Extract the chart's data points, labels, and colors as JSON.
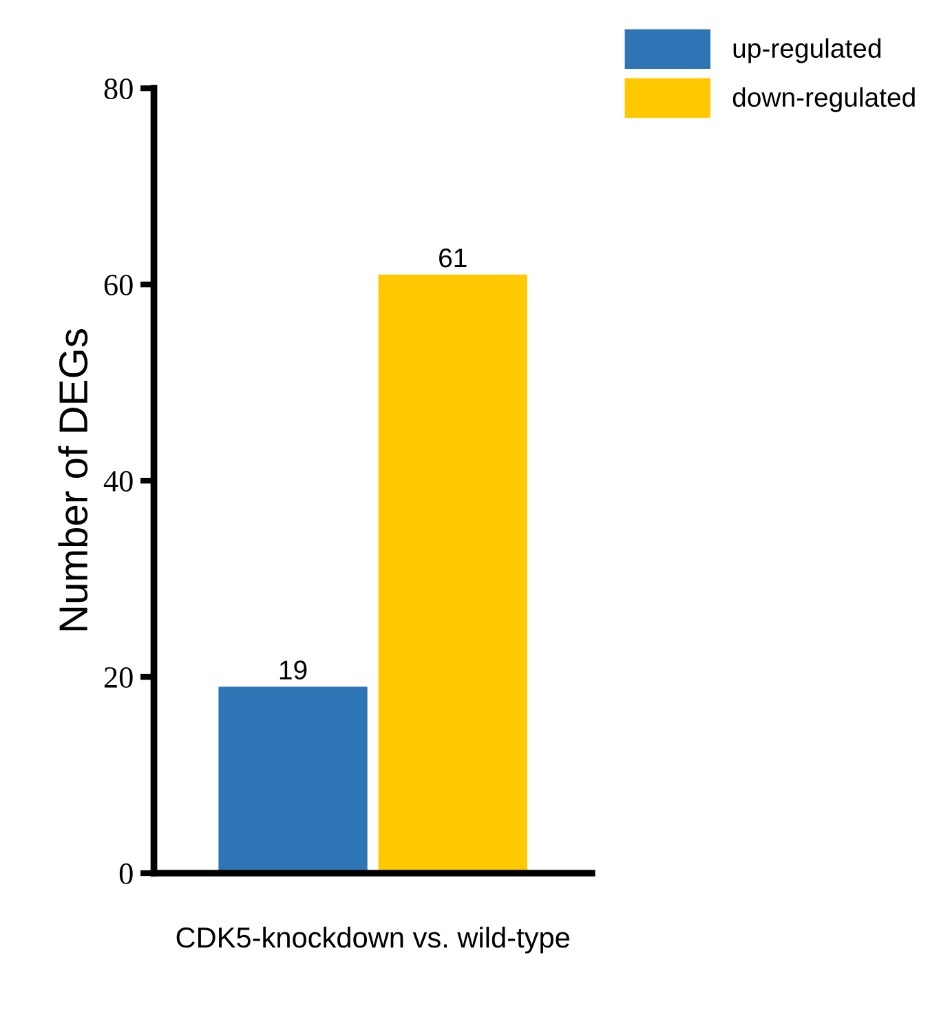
{
  "chart_data": {
    "type": "bar",
    "ylabel": "Number of DEGs",
    "categories": [
      "CDK5-knockdown vs. wild-type"
    ],
    "series": [
      {
        "name": "up-regulated",
        "color": "#2e75b6",
        "values": [
          19
        ]
      },
      {
        "name": "down-regulated",
        "color": "#ffc800",
        "values": [
          61
        ]
      }
    ],
    "ylim": [
      0,
      80
    ],
    "yticks": [
      0,
      20,
      40,
      60,
      80
    ],
    "data_labels": true,
    "legend": "top right",
    "grid": false
  }
}
